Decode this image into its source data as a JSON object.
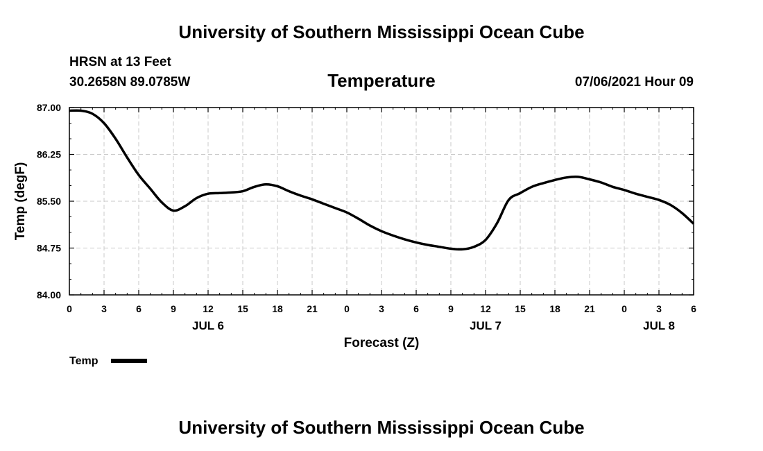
{
  "header": {
    "title": "University of Southern Mississippi Ocean Cube",
    "station": "HRSN at 13 Feet",
    "location": "30.2658N  89.0785W",
    "variable": "Temperature",
    "timestamp": "07/06/2021 Hour 09"
  },
  "footer": {
    "title": "University of Southern Mississippi Ocean Cube"
  },
  "chart_data": {
    "type": "line",
    "title": "Temperature",
    "xlabel": "Forecast (Z)",
    "ylabel": "Temp (degF)",
    "xlim": [
      0,
      54
    ],
    "ylim": [
      84.0,
      87.0
    ],
    "y_ticks": [
      "84.00",
      "84.75",
      "85.50",
      "86.25",
      "87.00"
    ],
    "y_tick_values": [
      84.0,
      84.75,
      85.5,
      86.25,
      87.0
    ],
    "x_ticks": [
      "0",
      "3",
      "6",
      "9",
      "12",
      "15",
      "18",
      "21",
      "0",
      "3",
      "6",
      "9",
      "12",
      "15",
      "18",
      "21",
      "0",
      "3",
      "6"
    ],
    "x_tick_values": [
      0,
      3,
      6,
      9,
      12,
      15,
      18,
      21,
      24,
      27,
      30,
      33,
      36,
      39,
      42,
      45,
      48,
      51,
      54
    ],
    "date_labels": [
      {
        "label": "JUL 6",
        "x": 12
      },
      {
        "label": "JUL 7",
        "x": 36
      },
      {
        "label": "JUL 8",
        "x": 51
      }
    ],
    "grid": true,
    "legend": "bottom-left",
    "series": [
      {
        "name": "Temp",
        "color": "#000000",
        "x": [
          0,
          1,
          2,
          3,
          4,
          5,
          6,
          7,
          8,
          9,
          10,
          11,
          12,
          13,
          14,
          15,
          16,
          17,
          18,
          19,
          20,
          21,
          22,
          23,
          24,
          25,
          26,
          27,
          28,
          29,
          30,
          31,
          32,
          33,
          34,
          35,
          36,
          37,
          38,
          39,
          40,
          41,
          42,
          43,
          44,
          45,
          46,
          47,
          48,
          49,
          50,
          51,
          52,
          53,
          54
        ],
        "values": [
          86.95,
          86.95,
          86.9,
          86.75,
          86.5,
          86.2,
          85.92,
          85.7,
          85.48,
          85.35,
          85.42,
          85.55,
          85.62,
          85.63,
          85.64,
          85.66,
          85.73,
          85.77,
          85.74,
          85.66,
          85.59,
          85.53,
          85.46,
          85.39,
          85.32,
          85.22,
          85.11,
          85.02,
          84.95,
          84.89,
          84.84,
          84.8,
          84.77,
          84.74,
          84.73,
          84.77,
          84.88,
          85.15,
          85.52,
          85.63,
          85.73,
          85.79,
          85.84,
          85.88,
          85.89,
          85.85,
          85.8,
          85.73,
          85.68,
          85.62,
          85.57,
          85.52,
          85.44,
          85.31,
          85.14
        ]
      }
    ]
  }
}
